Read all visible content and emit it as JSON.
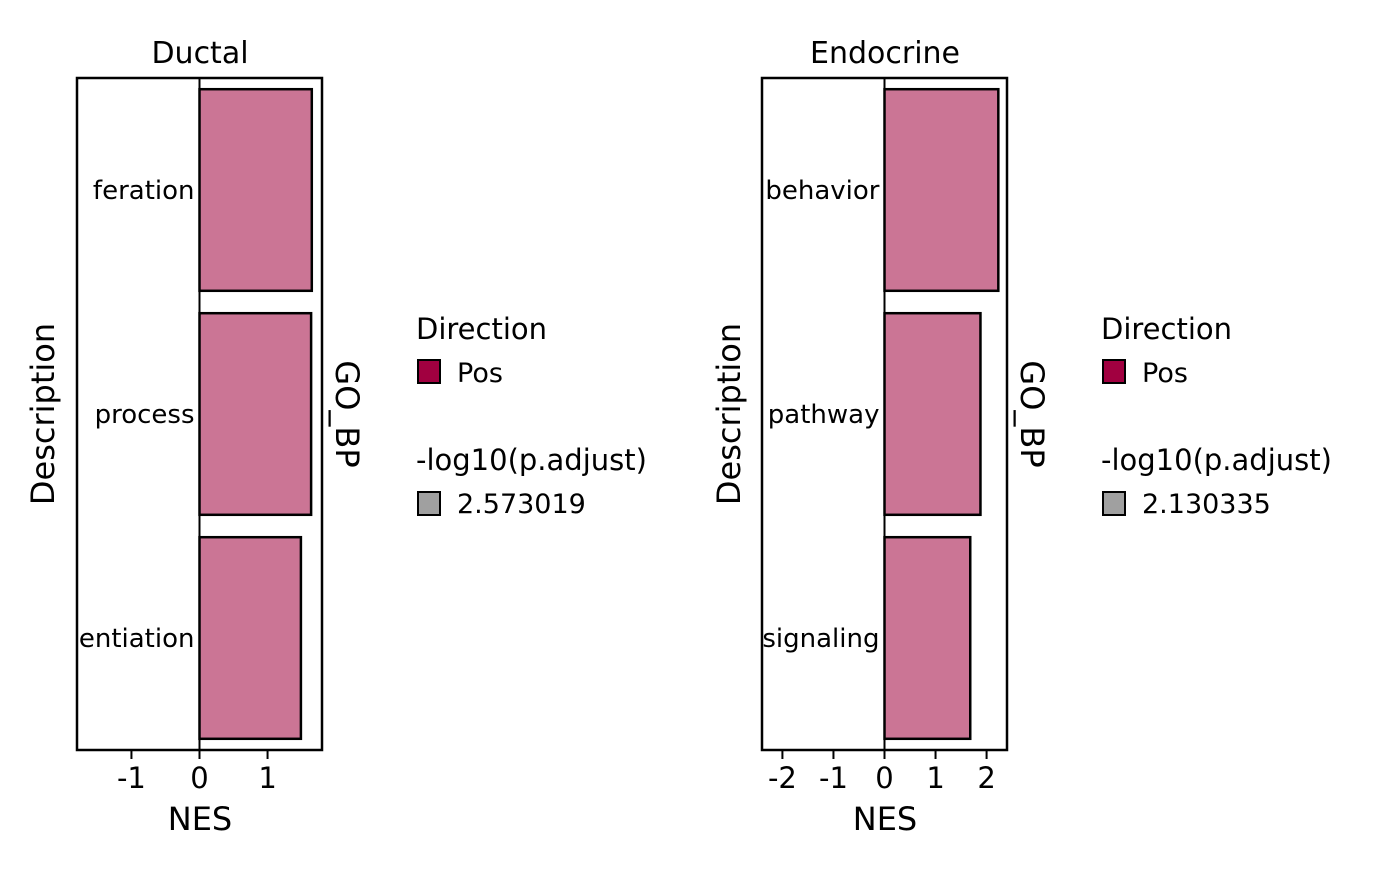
{
  "colors": {
    "bar_fill": "#CB7595",
    "bar_stroke": "#000000",
    "direction_key": "#A10040",
    "padj_key": "#A0A0A0"
  },
  "chart_data": [
    {
      "type": "bar",
      "orientation": "horizontal",
      "title": "Ductal",
      "xlabel": "NES",
      "ylabel": "Description",
      "strip_label": "GO_BP",
      "categories": [
        "feration",
        "process",
        "entiation"
      ],
      "values": [
        1.65,
        1.64,
        1.49
      ],
      "xlim": [
        -1.8,
        1.8
      ],
      "xticks": [
        -1,
        0,
        1
      ],
      "xtick_labels": [
        "-1",
        "0",
        "1"
      ],
      "legend": {
        "direction_title": "Direction",
        "direction_label": "Pos",
        "padj_title": "-log10(p.adjust)",
        "padj_label": "2.573019"
      }
    },
    {
      "type": "bar",
      "orientation": "horizontal",
      "title": "Endocrine",
      "xlabel": "NES",
      "ylabel": "Description",
      "strip_label": "GO_BP",
      "categories": [
        "behavior",
        "pathway",
        "signaling"
      ],
      "values": [
        2.23,
        1.88,
        1.68
      ],
      "xlim": [
        -2.4,
        2.4
      ],
      "xticks": [
        -2,
        -1,
        0,
        1,
        2
      ],
      "xtick_labels": [
        "-2",
        "-1",
        "0",
        "1",
        "2"
      ],
      "legend": {
        "direction_title": "Direction",
        "direction_label": "Pos",
        "padj_title": "-log10(p.adjust)",
        "padj_label": "2.130335"
      }
    }
  ]
}
